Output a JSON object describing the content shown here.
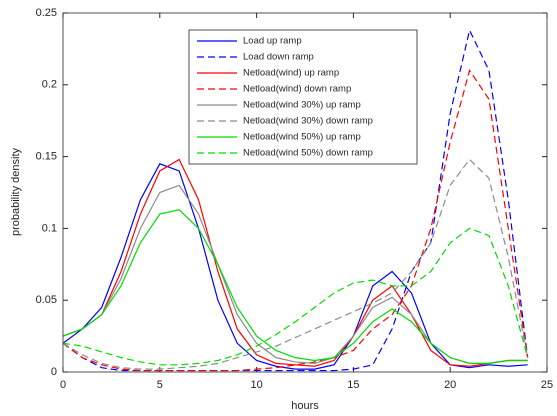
{
  "chart_data": {
    "type": "line",
    "x_label": "hours",
    "y_label": "probability density",
    "x": [
      0,
      1,
      2,
      3,
      4,
      5,
      6,
      7,
      8,
      9,
      10,
      11,
      12,
      13,
      14,
      15,
      16,
      17,
      18,
      19,
      20,
      21,
      22,
      23,
      24
    ],
    "series": [
      {
        "name": "Load up ramp",
        "color": "#0000ff",
        "style": "solid",
        "values": [
          0.02,
          0.03,
          0.045,
          0.08,
          0.12,
          0.145,
          0.14,
          0.1,
          0.05,
          0.02,
          0.008,
          0.004,
          0.002,
          0.002,
          0.005,
          0.025,
          0.06,
          0.07,
          0.055,
          0.02,
          0.005,
          0.003,
          0.005,
          0.004,
          0.005
        ]
      },
      {
        "name": "Load down ramp",
        "color": "#0000ff",
        "style": "dashed",
        "values": [
          0.02,
          0.01,
          0.003,
          0.001,
          0.001,
          0.001,
          0.001,
          0.001,
          0.001,
          0.001,
          0.001,
          0.001,
          0.001,
          0.001,
          0.001,
          0.002,
          0.005,
          0.03,
          0.07,
          0.09,
          0.18,
          0.238,
          0.21,
          0.12,
          0.01
        ]
      },
      {
        "name": "Netload(wind) up ramp",
        "color": "#ff0000",
        "style": "solid",
        "values": [
          0.025,
          0.03,
          0.04,
          0.07,
          0.11,
          0.14,
          0.148,
          0.12,
          0.07,
          0.03,
          0.012,
          0.006,
          0.005,
          0.004,
          0.008,
          0.025,
          0.05,
          0.06,
          0.04,
          0.015,
          0.005,
          0.004,
          0.006,
          0.008,
          0.008
        ]
      },
      {
        "name": "Netload(wind) down ramp",
        "color": "#ff0000",
        "style": "dashed",
        "values": [
          0.02,
          0.01,
          0.005,
          0.002,
          0.001,
          0.001,
          0.001,
          0.001,
          0.001,
          0.001,
          0.002,
          0.003,
          0.005,
          0.007,
          0.01,
          0.015,
          0.03,
          0.04,
          0.06,
          0.1,
          0.16,
          0.21,
          0.19,
          0.1,
          0.01
        ]
      },
      {
        "name": "Netload(wind 30%) up ramp",
        "color": "#8c8c8c",
        "style": "solid",
        "values": [
          0.025,
          0.03,
          0.04,
          0.065,
          0.1,
          0.125,
          0.13,
          0.11,
          0.075,
          0.04,
          0.02,
          0.01,
          0.007,
          0.006,
          0.01,
          0.025,
          0.045,
          0.052,
          0.04,
          0.02,
          0.01,
          0.006,
          0.006,
          0.008,
          0.008
        ]
      },
      {
        "name": "Netload(wind 30%) down ramp",
        "color": "#8c8c8c",
        "style": "dashed",
        "values": [
          0.02,
          0.012,
          0.006,
          0.003,
          0.002,
          0.002,
          0.003,
          0.004,
          0.006,
          0.01,
          0.014,
          0.018,
          0.024,
          0.03,
          0.036,
          0.042,
          0.048,
          0.055,
          0.07,
          0.09,
          0.13,
          0.148,
          0.135,
          0.08,
          0.01
        ]
      },
      {
        "name": "Netload(wind 50%) up ramp",
        "color": "#00dd00",
        "style": "solid",
        "values": [
          0.025,
          0.03,
          0.04,
          0.06,
          0.09,
          0.11,
          0.113,
          0.1,
          0.075,
          0.045,
          0.025,
          0.015,
          0.01,
          0.008,
          0.01,
          0.02,
          0.035,
          0.044,
          0.035,
          0.02,
          0.01,
          0.006,
          0.006,
          0.008,
          0.008
        ]
      },
      {
        "name": "Netload(wind 50%) down ramp",
        "color": "#00dd00",
        "style": "dashed",
        "values": [
          0.02,
          0.018,
          0.014,
          0.01,
          0.007,
          0.005,
          0.005,
          0.006,
          0.008,
          0.012,
          0.018,
          0.026,
          0.035,
          0.045,
          0.055,
          0.062,
          0.064,
          0.06,
          0.06,
          0.07,
          0.09,
          0.1,
          0.095,
          0.06,
          0.01
        ]
      }
    ],
    "xlim": [
      0,
      25
    ],
    "xticks": [
      0,
      5,
      10,
      15,
      20,
      25
    ],
    "ylim": [
      0,
      0.25
    ],
    "yticks": [
      0,
      0.05,
      0.1,
      0.15,
      0.2,
      0.25
    ],
    "grid": false,
    "legend": "upper center"
  }
}
